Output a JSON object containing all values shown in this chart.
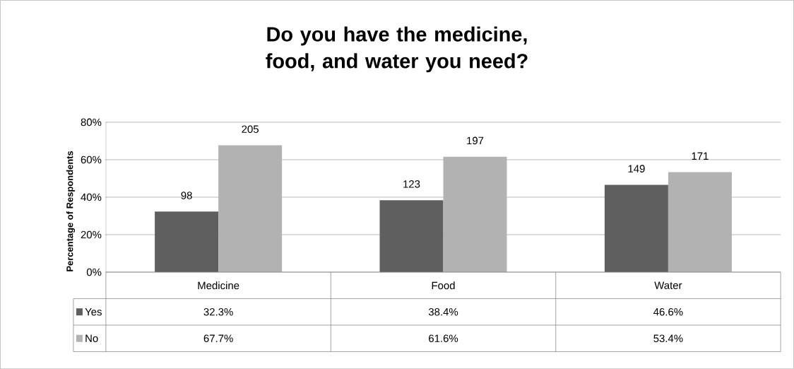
{
  "chart_data": {
    "type": "bar",
    "title": "Do you have the medicine, food, and water you need?",
    "ylabel": "Percentage of Respondents",
    "categories": [
      "Medicine",
      "Food",
      "Water"
    ],
    "series": [
      {
        "name": "Yes",
        "color": "#5f5f5f",
        "values": [
          32.3,
          38.4,
          46.6
        ],
        "value_labels": [
          "32.3%",
          "38.4%",
          "46.6%"
        ]
      },
      {
        "name": "No",
        "color": "#b2b2b2",
        "values": [
          67.7,
          61.6,
          53.4
        ],
        "value_labels": [
          "67.7%",
          "61.6%",
          "53.4%"
        ]
      }
    ],
    "annotations": [
      {
        "text": "98",
        "y": 32.3
      },
      {
        "text": "205",
        "y": 67.7
      },
      {
        "text": "123",
        "y": 38.4
      },
      {
        "text": "197",
        "y": 61.6
      },
      {
        "text": "149",
        "y": 46.6
      },
      {
        "text": "171",
        "y": 53.4
      }
    ],
    "ylim": [
      0,
      80
    ],
    "yticks": [
      {
        "value": 0,
        "label": "0%"
      },
      {
        "value": 20,
        "label": "20%"
      },
      {
        "value": 40,
        "label": "40%"
      },
      {
        "value": 60,
        "label": "60%"
      },
      {
        "value": 80,
        "label": "80%"
      }
    ],
    "grid": "y",
    "legend": "bottom left"
  }
}
